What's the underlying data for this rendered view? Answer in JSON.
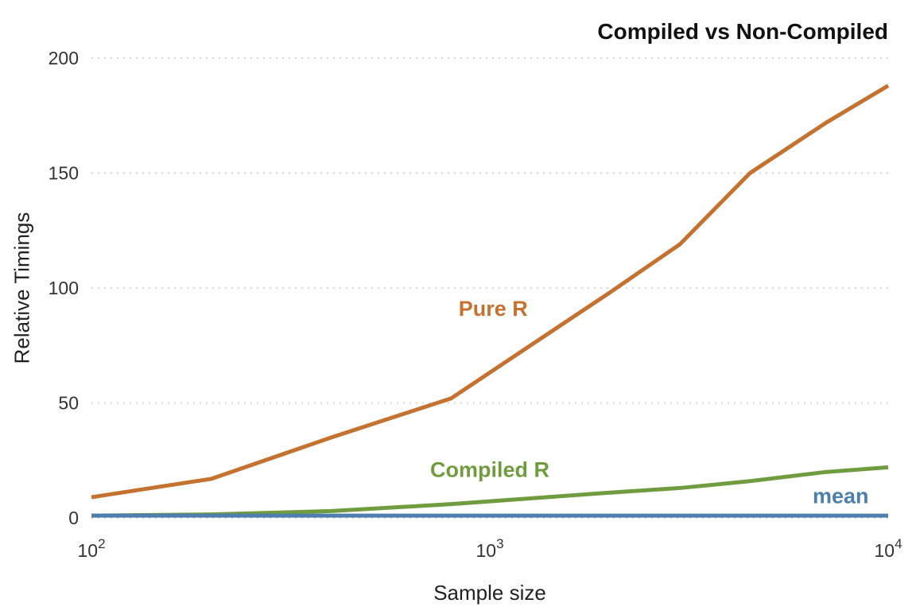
{
  "chart_data": {
    "type": "line",
    "title": "Compiled vs Non-Compiled",
    "xlabel": "Sample size",
    "ylabel": "Relative Timings",
    "x_scale": "log10",
    "xlim": [
      100,
      10000
    ],
    "ylim": [
      0,
      200
    ],
    "y_ticks": [
      0,
      50,
      100,
      150,
      200
    ],
    "x_tick_exponents": [
      2,
      3,
      4
    ],
    "grid": "horizontal-dotted",
    "grid_color": "#d6d6d6",
    "legend_position": "inline-labels",
    "x": [
      100,
      200,
      400,
      800,
      2000,
      3000,
      4500,
      7000,
      10000
    ],
    "series": [
      {
        "name": "Pure R",
        "color": "#c4722f",
        "values": [
          9,
          17,
          35,
          52,
          98,
          119,
          150,
          172,
          188
        ],
        "label": {
          "x": 1020,
          "y": 91
        }
      },
      {
        "name": "Compiled R",
        "color": "#709c3f",
        "values": [
          1,
          1.5,
          3,
          6,
          11,
          13,
          16,
          20,
          22
        ],
        "label": {
          "x": 1000,
          "y": 21
        }
      },
      {
        "name": "mean",
        "color": "#4e7eab",
        "values": [
          1,
          1,
          1,
          1,
          1,
          1,
          1,
          1,
          1
        ],
        "label": {
          "x": 7600,
          "y": 9.5
        }
      }
    ]
  }
}
